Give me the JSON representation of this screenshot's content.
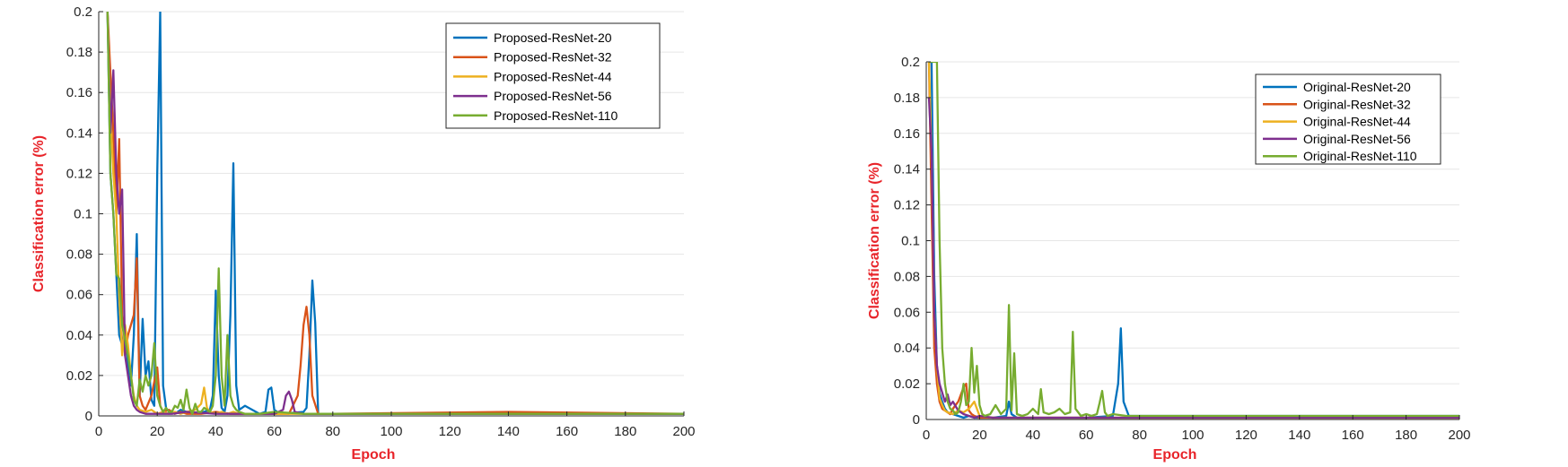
{
  "chart_data": [
    {
      "type": "line",
      "title": "",
      "xlabel": "Epoch",
      "ylabel": "Classification error (%)",
      "xlim": [
        0,
        200
      ],
      "ylim": [
        0,
        0.2
      ],
      "xticks": [
        0,
        20,
        40,
        60,
        80,
        100,
        120,
        140,
        160,
        180,
        200
      ],
      "yticks": [
        0,
        0.02,
        0.04,
        0.06,
        0.08,
        0.1,
        0.12,
        0.14,
        0.16,
        0.18,
        0.2
      ],
      "xtick_labels": [
        "0",
        "20",
        "40",
        "60",
        "80",
        "100",
        "120",
        "140",
        "160",
        "180",
        "200"
      ],
      "ytick_labels": [
        "0",
        "0.02",
        "0.04",
        "0.06",
        "0.08",
        "0.1",
        "0.12",
        "0.14",
        "0.16",
        "0.18",
        "0.2"
      ],
      "grid": true,
      "legend_position": "top-right",
      "series": [
        {
          "name": "Proposed-ResNet-20",
          "color": "#0072bd",
          "x": [
            3,
            4,
            5,
            6,
            7,
            8,
            9,
            10,
            11,
            12,
            13,
            14,
            15,
            16,
            17,
            18,
            19,
            20,
            21,
            22,
            23,
            24,
            26,
            28,
            30,
            32,
            34,
            36,
            38,
            39,
            40,
            41,
            42,
            43,
            44,
            45,
            46,
            47,
            48,
            50,
            55,
            57,
            58,
            59,
            60,
            62,
            70,
            71,
            72,
            73,
            74,
            75,
            80,
            100,
            140,
            200
          ],
          "y": [
            0.2,
            0.12,
            0.1,
            0.07,
            0.04,
            0.035,
            0.045,
            0.025,
            0.015,
            0.04,
            0.09,
            0.01,
            0.048,
            0.02,
            0.027,
            0.008,
            0.005,
            0.12,
            0.2,
            0.015,
            0.004,
            0.002,
            0.001,
            0.003,
            0.002,
            0.001,
            0.002,
            0.002,
            0.003,
            0.01,
            0.062,
            0.02,
            0.004,
            0.002,
            0.01,
            0.05,
            0.125,
            0.015,
            0.003,
            0.005,
            0.001,
            0.002,
            0.013,
            0.014,
            0.003,
            0.001,
            0.002,
            0.004,
            0.03,
            0.067,
            0.046,
            0.001,
            0.001,
            0.001,
            0.001,
            0.001
          ]
        },
        {
          "name": "Proposed-ResNet-32",
          "color": "#d95319",
          "x": [
            3,
            4,
            5,
            6,
            7,
            8,
            9,
            10,
            11,
            12,
            13,
            14,
            15,
            16,
            18,
            20,
            21,
            22,
            24,
            26,
            28,
            30,
            35,
            40,
            45,
            50,
            60,
            65,
            68,
            69,
            70,
            71,
            72,
            73,
            75,
            80,
            140,
            200
          ],
          "y": [
            0.2,
            0.17,
            0.14,
            0.1,
            0.137,
            0.05,
            0.03,
            0.04,
            0.045,
            0.05,
            0.078,
            0.01,
            0.005,
            0.003,
            0.01,
            0.024,
            0.005,
            0.002,
            0.003,
            0.001,
            0.002,
            0.001,
            0.001,
            0.002,
            0.001,
            0.001,
            0.001,
            0.001,
            0.01,
            0.025,
            0.045,
            0.054,
            0.04,
            0.01,
            0.001,
            0.001,
            0.002,
            0.001
          ]
        },
        {
          "name": "Proposed-ResNet-44",
          "color": "#edb120",
          "x": [
            3,
            4,
            5,
            6,
            7,
            8,
            9,
            10,
            11,
            12,
            13,
            14,
            16,
            18,
            20,
            22,
            24,
            26,
            28,
            30,
            33,
            35,
            36,
            37,
            38,
            40,
            42,
            44,
            46,
            48,
            50,
            60,
            200
          ],
          "y": [
            0.2,
            0.15,
            0.12,
            0.1,
            0.06,
            0.03,
            0.045,
            0.035,
            0.02,
            0.01,
            0.005,
            0.003,
            0.002,
            0.003,
            0.001,
            0.002,
            0.001,
            0.002,
            0.001,
            0.002,
            0.003,
            0.006,
            0.014,
            0.004,
            0.002,
            0.001,
            0.002,
            0.001,
            0.002,
            0.001,
            0.001,
            0.001,
            0.001
          ]
        },
        {
          "name": "Proposed-ResNet-56",
          "color": "#7e2f8e",
          "x": [
            3,
            4,
            5,
            6,
            7,
            8,
            9,
            10,
            11,
            12,
            13,
            14,
            16,
            18,
            20,
            25,
            30,
            40,
            50,
            60,
            63,
            64,
            65,
            66,
            67,
            70,
            80,
            200
          ],
          "y": [
            0.2,
            0.14,
            0.171,
            0.12,
            0.1,
            0.112,
            0.03,
            0.02,
            0.01,
            0.005,
            0.003,
            0.002,
            0.001,
            0.001,
            0.001,
            0.001,
            0.002,
            0.001,
            0.001,
            0.001,
            0.003,
            0.01,
            0.012,
            0.008,
            0.002,
            0.001,
            0.001,
            0.001
          ]
        },
        {
          "name": "Proposed-ResNet-110",
          "color": "#77ac30",
          "x": [
            3,
            4,
            5,
            6,
            7,
            8,
            9,
            10,
            11,
            12,
            13,
            14,
            15,
            16,
            17,
            18,
            19,
            20,
            21,
            22,
            23,
            24,
            25,
            26,
            27,
            28,
            29,
            30,
            31,
            32,
            33,
            34,
            35,
            36,
            37,
            38,
            39,
            40,
            41,
            42,
            43,
            44,
            45,
            46,
            47,
            48,
            50,
            55,
            60,
            70,
            80,
            100,
            120,
            140,
            160,
            180,
            200
          ],
          "y": [
            0.2,
            0.12,
            0.1,
            0.07,
            0.068,
            0.045,
            0.038,
            0.03,
            0.02,
            0.008,
            0.005,
            0.018,
            0.012,
            0.02,
            0.015,
            0.02,
            0.036,
            0.01,
            0.005,
            0.002,
            0.004,
            0.002,
            0.002,
            0.005,
            0.004,
            0.008,
            0.003,
            0.013,
            0.004,
            0.001,
            0.006,
            0.002,
            0.002,
            0.004,
            0.003,
            0.002,
            0.005,
            0.02,
            0.073,
            0.02,
            0.005,
            0.04,
            0.01,
            0.005,
            0.003,
            0.002,
            0.001,
            0.001,
            0.002,
            0.001,
            0.001,
            0.001,
            0.001,
            0.001,
            0.001,
            0.001,
            0.001
          ]
        }
      ]
    },
    {
      "type": "line",
      "title": "",
      "xlabel": "Epoch",
      "ylabel": "Classification error (%)",
      "xlim": [
        0,
        200
      ],
      "ylim": [
        0,
        0.2
      ],
      "xticks": [
        0,
        20,
        40,
        60,
        80,
        100,
        120,
        140,
        160,
        180,
        200
      ],
      "yticks": [
        0,
        0.02,
        0.04,
        0.06,
        0.08,
        0.1,
        0.12,
        0.14,
        0.16,
        0.18,
        0.2
      ],
      "xtick_labels": [
        "0",
        "20",
        "40",
        "60",
        "80",
        "100",
        "120",
        "140",
        "160",
        "180",
        "200"
      ],
      "ytick_labels": [
        "0",
        "0.02",
        "0.04",
        "0.06",
        "0.08",
        "0.1",
        "0.12",
        "0.14",
        "0.16",
        "0.18",
        "0.2"
      ],
      "grid": true,
      "legend_position": "top-right",
      "series": [
        {
          "name": "Original-ResNet-20",
          "color": "#0072bd",
          "x": [
            1,
            2,
            3,
            4,
            5,
            6,
            7,
            8,
            10,
            12,
            14,
            16,
            18,
            20,
            25,
            30,
            31,
            32,
            34,
            40,
            50,
            60,
            70,
            72,
            73,
            74,
            76,
            80,
            100,
            140,
            200
          ],
          "y": [
            0.2,
            0.2,
            0.08,
            0.03,
            0.015,
            0.01,
            0.006,
            0.004,
            0.003,
            0.002,
            0.001,
            0.002,
            0.001,
            0.001,
            0.001,
            0.002,
            0.01,
            0.003,
            0.001,
            0.001,
            0.001,
            0.001,
            0.002,
            0.02,
            0.051,
            0.01,
            0.002,
            0.002,
            0.002,
            0.002,
            0.002
          ]
        },
        {
          "name": "Original-ResNet-32",
          "color": "#d95319",
          "x": [
            1,
            2,
            3,
            4,
            5,
            6,
            7,
            8,
            9,
            10,
            12,
            14,
            15,
            16,
            17,
            18,
            20,
            25,
            30,
            40,
            60,
            100,
            140,
            200
          ],
          "y": [
            0.2,
            0.12,
            0.04,
            0.02,
            0.01,
            0.006,
            0.005,
            0.004,
            0.003,
            0.006,
            0.01,
            0.018,
            0.02,
            0.005,
            0.003,
            0.002,
            0.001,
            0.001,
            0.001,
            0.001,
            0.001,
            0.001,
            0.001,
            0.001
          ]
        },
        {
          "name": "Original-ResNet-44",
          "color": "#edb120",
          "x": [
            1,
            2,
            3,
            4,
            5,
            6,
            7,
            8,
            10,
            12,
            14,
            16,
            18,
            20,
            25,
            30,
            40,
            60,
            100,
            140,
            200
          ],
          "y": [
            0.2,
            0.15,
            0.06,
            0.03,
            0.012,
            0.008,
            0.005,
            0.004,
            0.003,
            0.005,
            0.004,
            0.006,
            0.01,
            0.002,
            0.001,
            0.001,
            0.001,
            0.001,
            0.001,
            0.001,
            0.001
          ]
        },
        {
          "name": "Original-ResNet-56",
          "color": "#7e2f8e",
          "x": [
            1,
            2,
            3,
            4,
            5,
            6,
            7,
            8,
            9,
            10,
            12,
            14,
            16,
            18,
            20,
            25,
            30,
            40,
            60,
            100,
            140,
            200
          ],
          "y": [
            0.18,
            0.15,
            0.06,
            0.03,
            0.02,
            0.015,
            0.01,
            0.014,
            0.008,
            0.01,
            0.005,
            0.003,
            0.002,
            0.001,
            0.002,
            0.001,
            0.001,
            0.001,
            0.001,
            0.001,
            0.001,
            0.001
          ]
        },
        {
          "name": "Original-ResNet-110",
          "color": "#77ac30",
          "x": [
            1,
            2,
            3,
            4,
            5,
            6,
            7,
            8,
            9,
            10,
            11,
            12,
            13,
            14,
            15,
            16,
            17,
            18,
            19,
            20,
            21,
            22,
            24,
            26,
            28,
            30,
            31,
            32,
            33,
            34,
            36,
            38,
            40,
            42,
            43,
            44,
            46,
            48,
            50,
            52,
            54,
            55,
            56,
            58,
            60,
            62,
            64,
            65,
            66,
            67,
            68,
            70,
            75,
            80,
            100,
            120,
            140,
            160,
            180,
            200
          ],
          "y": [
            0.2,
            0.2,
            0.2,
            0.2,
            0.1,
            0.04,
            0.02,
            0.01,
            0.006,
            0.005,
            0.003,
            0.004,
            0.01,
            0.02,
            0.008,
            0.01,
            0.04,
            0.015,
            0.03,
            0.008,
            0.003,
            0.002,
            0.003,
            0.008,
            0.003,
            0.006,
            0.064,
            0.005,
            0.037,
            0.003,
            0.002,
            0.003,
            0.006,
            0.003,
            0.017,
            0.004,
            0.003,
            0.004,
            0.006,
            0.003,
            0.004,
            0.049,
            0.006,
            0.002,
            0.003,
            0.002,
            0.003,
            0.009,
            0.016,
            0.004,
            0.002,
            0.003,
            0.002,
            0.002,
            0.002,
            0.002,
            0.002,
            0.002,
            0.002,
            0.002
          ]
        }
      ]
    }
  ]
}
